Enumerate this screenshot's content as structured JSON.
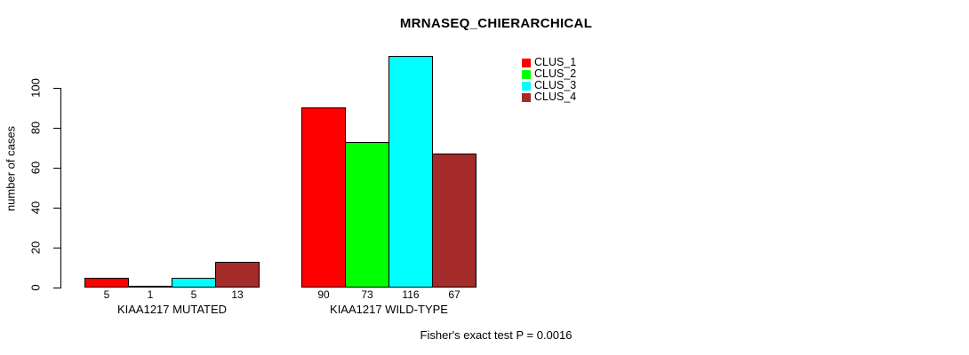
{
  "chart_data": {
    "type": "bar",
    "title": "MRNASEQ_CHIERARCHICAL",
    "ylabel": "number of cases",
    "xlabel": "",
    "footer": "Fisher's exact test P = 0.0016",
    "yticks": [
      0,
      20,
      40,
      60,
      80,
      100
    ],
    "ylim": [
      0,
      120
    ],
    "grid": false,
    "legend_position": "top-right",
    "bar_border_color": "#000000",
    "background_color": "#ffffff",
    "series": [
      {
        "name": "CLUS_1",
        "color": "#ff0000"
      },
      {
        "name": "CLUS_2",
        "color": "#00ff00"
      },
      {
        "name": "CLUS_3",
        "color": "#00ffff"
      },
      {
        "name": "CLUS_4",
        "color": "#a52a2a"
      }
    ],
    "groups": [
      {
        "label": "KIAA1217 MUTATED",
        "values": [
          5,
          1,
          5,
          13
        ]
      },
      {
        "label": "KIAA1217 WILD-TYPE",
        "values": [
          90,
          73,
          116,
          67
        ]
      }
    ]
  }
}
